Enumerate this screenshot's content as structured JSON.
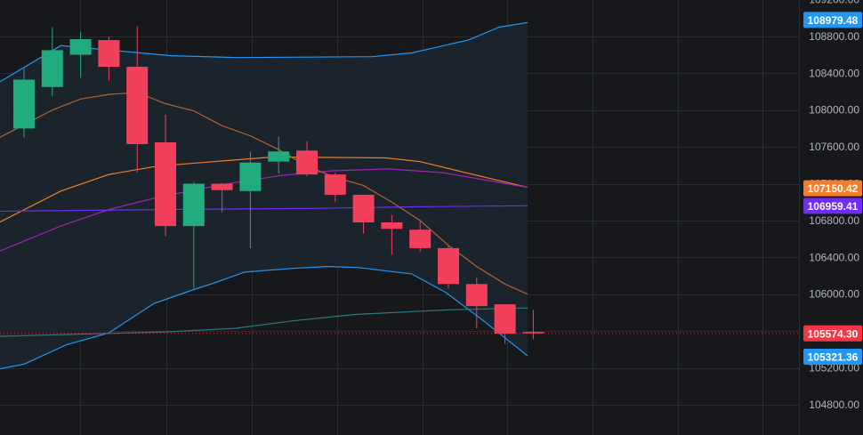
{
  "chart_data": {
    "type": "candlestick",
    "y_axis": {
      "min": 104600,
      "max": 109200,
      "ticks": [
        104800,
        105200,
        105600,
        106000,
        106400,
        106800,
        107200,
        107600,
        108000,
        108400,
        108800
      ],
      "tick_labels": [
        "104800.00",
        "105200.00",
        "105600.00",
        "106000.00",
        "106400.00",
        "106800.00",
        "107200.00",
        "107600.00",
        "108000.00",
        "108400.00",
        "108800.00"
      ]
    },
    "grid": true,
    "candles": [
      {
        "open": 107800,
        "high": 108450,
        "low": 107700,
        "close": 108330
      },
      {
        "open": 108250,
        "high": 108900,
        "low": 108150,
        "close": 108650
      },
      {
        "open": 108600,
        "high": 108850,
        "low": 108350,
        "close": 108770
      },
      {
        "open": 108760,
        "high": 108800,
        "low": 108320,
        "close": 108470
      },
      {
        "open": 108470,
        "high": 108910,
        "low": 107320,
        "close": 107630
      },
      {
        "open": 107650,
        "high": 107950,
        "low": 106630,
        "close": 106740
      },
      {
        "open": 106740,
        "high": 107220,
        "low": 106060,
        "close": 107200
      },
      {
        "open": 107200,
        "high": 107210,
        "low": 106890,
        "close": 107130
      },
      {
        "open": 107120,
        "high": 107550,
        "low": 106500,
        "close": 107430
      },
      {
        "open": 107440,
        "high": 107710,
        "low": 107310,
        "close": 107550
      },
      {
        "open": 107560,
        "high": 107660,
        "low": 107280,
        "close": 107300
      },
      {
        "open": 107300,
        "high": 107320,
        "low": 107000,
        "close": 107080
      },
      {
        "open": 107080,
        "high": 107080,
        "low": 106660,
        "close": 106780
      },
      {
        "open": 106780,
        "high": 106860,
        "low": 106430,
        "close": 106710
      },
      {
        "open": 106700,
        "high": 106790,
        "low": 106460,
        "close": 106500
      },
      {
        "open": 106500,
        "high": 106530,
        "low": 106060,
        "close": 106110
      },
      {
        "open": 106110,
        "high": 106180,
        "low": 105630,
        "close": 105870
      },
      {
        "open": 105890,
        "high": 105890,
        "low": 105460,
        "close": 105570
      },
      {
        "open": 105590,
        "high": 105830,
        "low": 105510,
        "close": 105574
      }
    ],
    "series": [
      {
        "type": "line",
        "color": "#2196f3",
        "points": [
          [
            -1,
            108280
          ],
          [
            1.3,
            108700
          ],
          [
            5.2,
            108590
          ],
          [
            7.5,
            108570
          ],
          [
            12.3,
            108580
          ],
          [
            13.7,
            108620
          ],
          [
            15.7,
            108760
          ],
          [
            16.8,
            108900
          ],
          [
            17.8,
            108950
          ]
        ]
      },
      {
        "type": "line",
        "color": "#2196f3",
        "points": [
          [
            -1,
            105180
          ],
          [
            0,
            105240
          ],
          [
            1.5,
            105450
          ],
          [
            3,
            105580
          ],
          [
            4.6,
            105900
          ],
          [
            6,
            106050
          ],
          [
            6.7,
            106120
          ],
          [
            7.8,
            106240
          ],
          [
            9.5,
            106280
          ],
          [
            10.7,
            106300
          ],
          [
            11.8,
            106290
          ],
          [
            13.7,
            106220
          ],
          [
            14.9,
            106020
          ],
          [
            16.2,
            105720
          ],
          [
            17.8,
            105330
          ]
        ]
      },
      {
        "type": "line",
        "color": "#f57c28",
        "points": [
          [
            -1,
            106760
          ],
          [
            1.3,
            107120
          ],
          [
            3,
            107300
          ],
          [
            4.7,
            107390
          ],
          [
            6.7,
            107440
          ],
          [
            8.8,
            107490
          ],
          [
            12.8,
            107480
          ],
          [
            14,
            107440
          ],
          [
            15.6,
            107320
          ],
          [
            17.8,
            107160
          ]
        ]
      },
      {
        "type": "line",
        "color": "#9c27b0",
        "points": [
          [
            -1,
            106450
          ],
          [
            1.3,
            106740
          ],
          [
            3,
            106920
          ],
          [
            4.7,
            107050
          ],
          [
            7,
            107190
          ],
          [
            9.1,
            107290
          ],
          [
            10.9,
            107340
          ],
          [
            12.9,
            107360
          ],
          [
            14.8,
            107320
          ],
          [
            17.8,
            107160
          ]
        ]
      },
      {
        "type": "line",
        "color": "#6f2cf2",
        "points": [
          [
            -1,
            106900
          ],
          [
            5,
            106920
          ],
          [
            10,
            106930
          ],
          [
            14,
            106950
          ],
          [
            17.8,
            106960
          ]
        ]
      },
      {
        "type": "line",
        "color": "#b06434",
        "points": [
          [
            -1,
            107680
          ],
          [
            0,
            107840
          ],
          [
            1,
            108000
          ],
          [
            2,
            108120
          ],
          [
            3,
            108170
          ],
          [
            4,
            108190
          ],
          [
            5,
            108070
          ],
          [
            6,
            107990
          ],
          [
            7,
            107830
          ],
          [
            8,
            107720
          ],
          [
            9,
            107570
          ],
          [
            10,
            107390
          ],
          [
            11,
            107270
          ],
          [
            12,
            107180
          ],
          [
            13,
            107000
          ],
          [
            14,
            106800
          ],
          [
            15,
            106530
          ],
          [
            16,
            106300
          ],
          [
            17,
            106110
          ],
          [
            17.8,
            106000
          ]
        ]
      },
      {
        "type": "line",
        "color": "#2b7a80",
        "points": [
          [
            -1,
            105540
          ],
          [
            1.3,
            105560
          ],
          [
            5,
            105590
          ],
          [
            7.5,
            105630
          ],
          [
            9.5,
            105710
          ],
          [
            11.7,
            105780
          ],
          [
            15,
            105830
          ],
          [
            17.8,
            105850
          ]
        ]
      }
    ],
    "price_labels": [
      {
        "value": 108979.48,
        "label": "108979.48",
        "color": "#2196f3"
      },
      {
        "value": 107150.42,
        "label": "107150.42",
        "color": "#f57c28"
      },
      {
        "value": 106959.41,
        "label": "106959.41",
        "color": "#6f2cf2"
      },
      {
        "value": 105574.3,
        "label": "105574.30",
        "color": "#f23645"
      },
      {
        "value": 105321.36,
        "label": "105321.36",
        "color": "#2196f3"
      }
    ],
    "colors": {
      "up": "#26a69a",
      "up_candle": "#22ab7e",
      "down": "#f23f5c",
      "background": "#17181c",
      "band_fill": "#1c2530",
      "grid": "#2a2c33"
    }
  }
}
